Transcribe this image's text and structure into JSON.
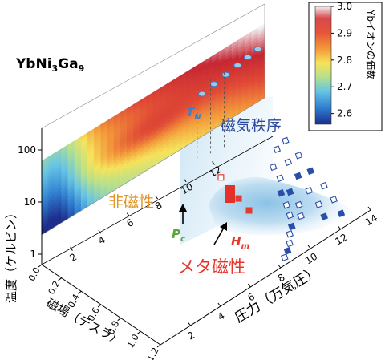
{
  "chart_data": {
    "type": "heatmap",
    "compound": {
      "base": "YbNi",
      "sub1": "3",
      "mid": "Ga",
      "sub2": "9"
    },
    "colorbar": {
      "label": "Ybイオンの価数",
      "ticks": [
        "3.0",
        "2.9",
        "2.8",
        "2.7",
        "2.6"
      ],
      "range": [
        2.55,
        3.0
      ],
      "colors": [
        "#1c2d8c",
        "#2f7fd0",
        "#66c4e4",
        "#b4e08e",
        "#f6e35a",
        "#f39a3a",
        "#e14a35",
        "#c42531",
        "#f2f2f4"
      ]
    },
    "axes": {
      "temperature": {
        "label": "温度（ケルビン）",
        "ticks": [
          "1",
          "10",
          "100"
        ],
        "scale": "log",
        "range": [
          1,
          300
        ]
      },
      "field": {
        "label": "磁場（テスラ）",
        "ticks": [
          "0.0",
          "0.2",
          "0.4",
          "0.6",
          "0.8",
          "1.0",
          "1.2"
        ],
        "range": [
          0,
          1.2
        ]
      },
      "pressure": {
        "label": "圧力（万気圧）",
        "ticks": [
          "2",
          "4",
          "6",
          "8",
          "10",
          "12",
          "14"
        ],
        "range": [
          0,
          14
        ]
      },
      "back_pressure_ticks": [
        "2",
        "4",
        "6",
        "8",
        "10",
        "12"
      ]
    },
    "annotations": {
      "tn": {
        "main": "T",
        "sub": "N"
      },
      "pc": {
        "main": "P",
        "sub": "c"
      },
      "hm": {
        "main": "H",
        "sub": "m"
      },
      "ordered": "磁気秩序",
      "nonmagnetic": "非磁性",
      "metamagnetic": "メタ磁性"
    },
    "tn_points": [
      [
        9.5,
        40
      ],
      [
        10.2,
        50
      ],
      [
        10.9,
        60
      ],
      [
        11.6,
        72
      ],
      [
        12.2,
        85
      ],
      [
        12.8,
        100
      ]
    ],
    "phase_boundary_points": [
      [
        8.6,
        0.05
      ],
      [
        9.0,
        0.08
      ],
      [
        9.4,
        0.12
      ],
      [
        9.8,
        0.18
      ],
      [
        10.2,
        0.22
      ],
      [
        10.6,
        0.3
      ],
      [
        10.9,
        0.38
      ],
      [
        11.2,
        0.48
      ],
      [
        11.0,
        0.25
      ],
      [
        11.4,
        0.33
      ],
      [
        11.6,
        0.45
      ],
      [
        11.8,
        0.58
      ],
      [
        12.0,
        0.68
      ],
      [
        11.9,
        0.15
      ],
      [
        12.2,
        0.25
      ],
      [
        12.4,
        0.38
      ],
      [
        12.6,
        0.52
      ],
      [
        12.8,
        0.65
      ],
      [
        12.9,
        0.78
      ],
      [
        12.7,
        0.1
      ],
      [
        13.0,
        0.22
      ],
      [
        13.2,
        0.35
      ],
      [
        13.3,
        0.5
      ],
      [
        13.5,
        0.65
      ],
      [
        13.6,
        0.8
      ]
    ],
    "metamagnetic_points": [
      [
        9.2,
        0.5
      ],
      [
        9.3,
        0.62
      ],
      [
        9.4,
        0.72
      ],
      [
        9.5,
        0.83
      ]
    ]
  }
}
